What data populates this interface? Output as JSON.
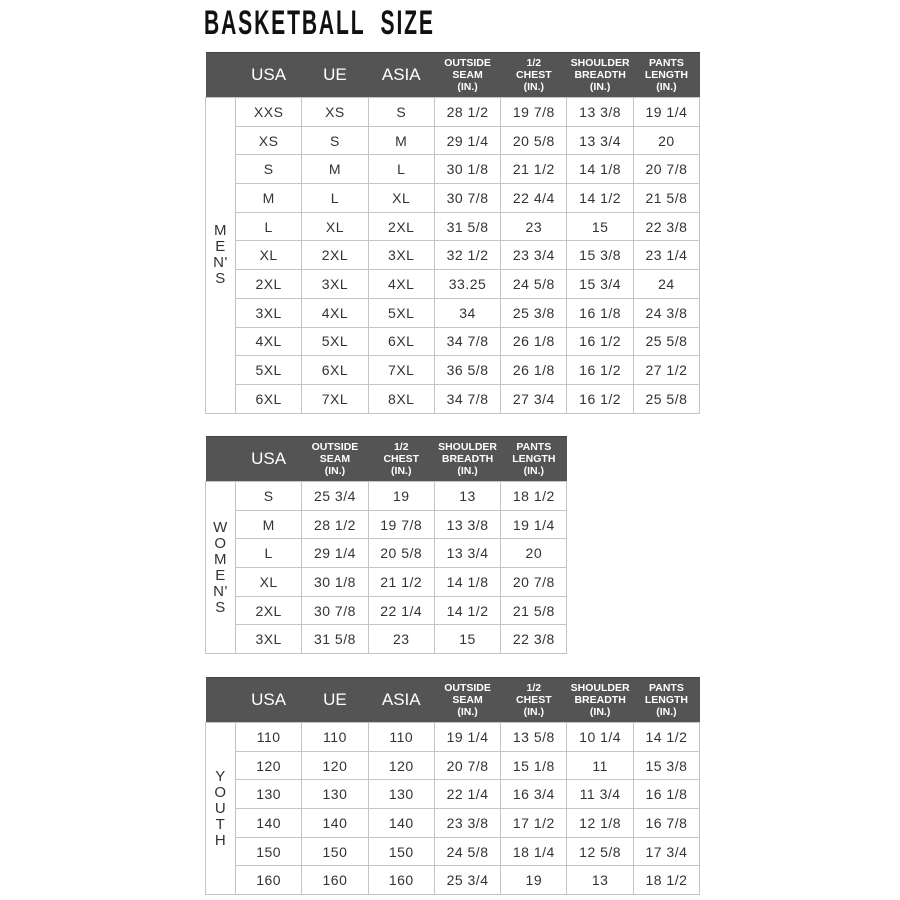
{
  "title": "BASKETBALL  SIZE",
  "colors": {
    "header_bg": "#545454",
    "header_text": "#ffffff",
    "grid": "#c4c4c4"
  },
  "tables": [
    {
      "id": "mens",
      "side_label": [
        "M",
        "E",
        "N'",
        "S"
      ],
      "headers": [
        "USA",
        "UE",
        "ASIA",
        "OUTSIDE\nSEAM\n(IN.)",
        "1/2\nCHEST\n(IN.)",
        "SHOULDER\nBREADTH\n(IN.)",
        "PANTS\nLENGTH\n(IN.)"
      ],
      "rows": [
        [
          "XXS",
          "XS",
          "S",
          "28 1/2",
          "19 7/8",
          "13 3/8",
          "19 1/4"
        ],
        [
          "XS",
          "S",
          "M",
          "29 1/4",
          "20 5/8",
          "13 3/4",
          "20"
        ],
        [
          "S",
          "M",
          "L",
          "30 1/8",
          "21 1/2",
          "14 1/8",
          "20 7/8"
        ],
        [
          "M",
          "L",
          "XL",
          "30 7/8",
          "22 4/4",
          "14 1/2",
          "21 5/8"
        ],
        [
          "L",
          "XL",
          "2XL",
          "31 5/8",
          "23",
          "15",
          "22 3/8"
        ],
        [
          "XL",
          "2XL",
          "3XL",
          "32 1/2",
          "23 3/4",
          "15 3/8",
          "23 1/4"
        ],
        [
          "2XL",
          "3XL",
          "4XL",
          "33.25",
          "24 5/8",
          "15 3/4",
          "24"
        ],
        [
          "3XL",
          "4XL",
          "5XL",
          "34",
          "25 3/8",
          "16 1/8",
          "24 3/8"
        ],
        [
          "4XL",
          "5XL",
          "6XL",
          "34 7/8",
          "26 1/8",
          "16 1/2",
          "25 5/8"
        ],
        [
          "5XL",
          "6XL",
          "7XL",
          "36 5/8",
          "26 1/8",
          "16 1/2",
          "27 1/2"
        ],
        [
          "6XL",
          "7XL",
          "8XL",
          "34 7/8",
          "27 3/4",
          "16 1/2",
          "25 5/8"
        ]
      ]
    },
    {
      "id": "womens",
      "side_label": [
        "W",
        "O",
        "M",
        "E",
        "N'",
        "S"
      ],
      "headers": [
        "USA",
        "OUTSIDE\nSEAM\n(IN.)",
        "1/2\nCHEST\n(IN.)",
        "SHOULDER\nBREADTH\n(IN.)",
        "PANTS\nLENGTH\n(IN.)"
      ],
      "rows": [
        [
          "S",
          "25 3/4",
          "19",
          "13",
          "18 1/2"
        ],
        [
          "M",
          "28 1/2",
          "19 7/8",
          "13 3/8",
          "19 1/4"
        ],
        [
          "L",
          "29 1/4",
          "20 5/8",
          "13 3/4",
          "20"
        ],
        [
          "XL",
          "30 1/8",
          "21 1/2",
          "14 1/8",
          "20 7/8"
        ],
        [
          "2XL",
          "30 7/8",
          "22 1/4",
          "14 1/2",
          "21 5/8"
        ],
        [
          "3XL",
          "31 5/8",
          "23",
          "15",
          "22 3/8"
        ]
      ]
    },
    {
      "id": "youth",
      "side_label": [
        "Y",
        "O",
        "U",
        "T",
        "H"
      ],
      "headers": [
        "USA",
        "UE",
        "ASIA",
        "OUTSIDE\nSEAM\n(IN.)",
        "1/2\nCHEST\n(IN.)",
        "SHOULDER\nBREADTH\n(IN.)",
        "PANTS\nLENGTH\n(IN.)"
      ],
      "rows": [
        [
          "110",
          "110",
          "110",
          "19 1/4",
          "13 5/8",
          "10 1/4",
          "14 1/2"
        ],
        [
          "120",
          "120",
          "120",
          "20 7/8",
          "15 1/8",
          "11",
          "15 3/8"
        ],
        [
          "130",
          "130",
          "130",
          "22 1/4",
          "16 3/4",
          "11 3/4",
          "16 1/8"
        ],
        [
          "140",
          "140",
          "140",
          "23 3/8",
          "17 1/2",
          "12 1/8",
          "16 7/8"
        ],
        [
          "150",
          "150",
          "150",
          "24 5/8",
          "18 1/4",
          "12 5/8",
          "17 3/4"
        ],
        [
          "160",
          "160",
          "160",
          "25 3/4",
          "19",
          "13",
          "18 1/2"
        ]
      ]
    }
  ]
}
